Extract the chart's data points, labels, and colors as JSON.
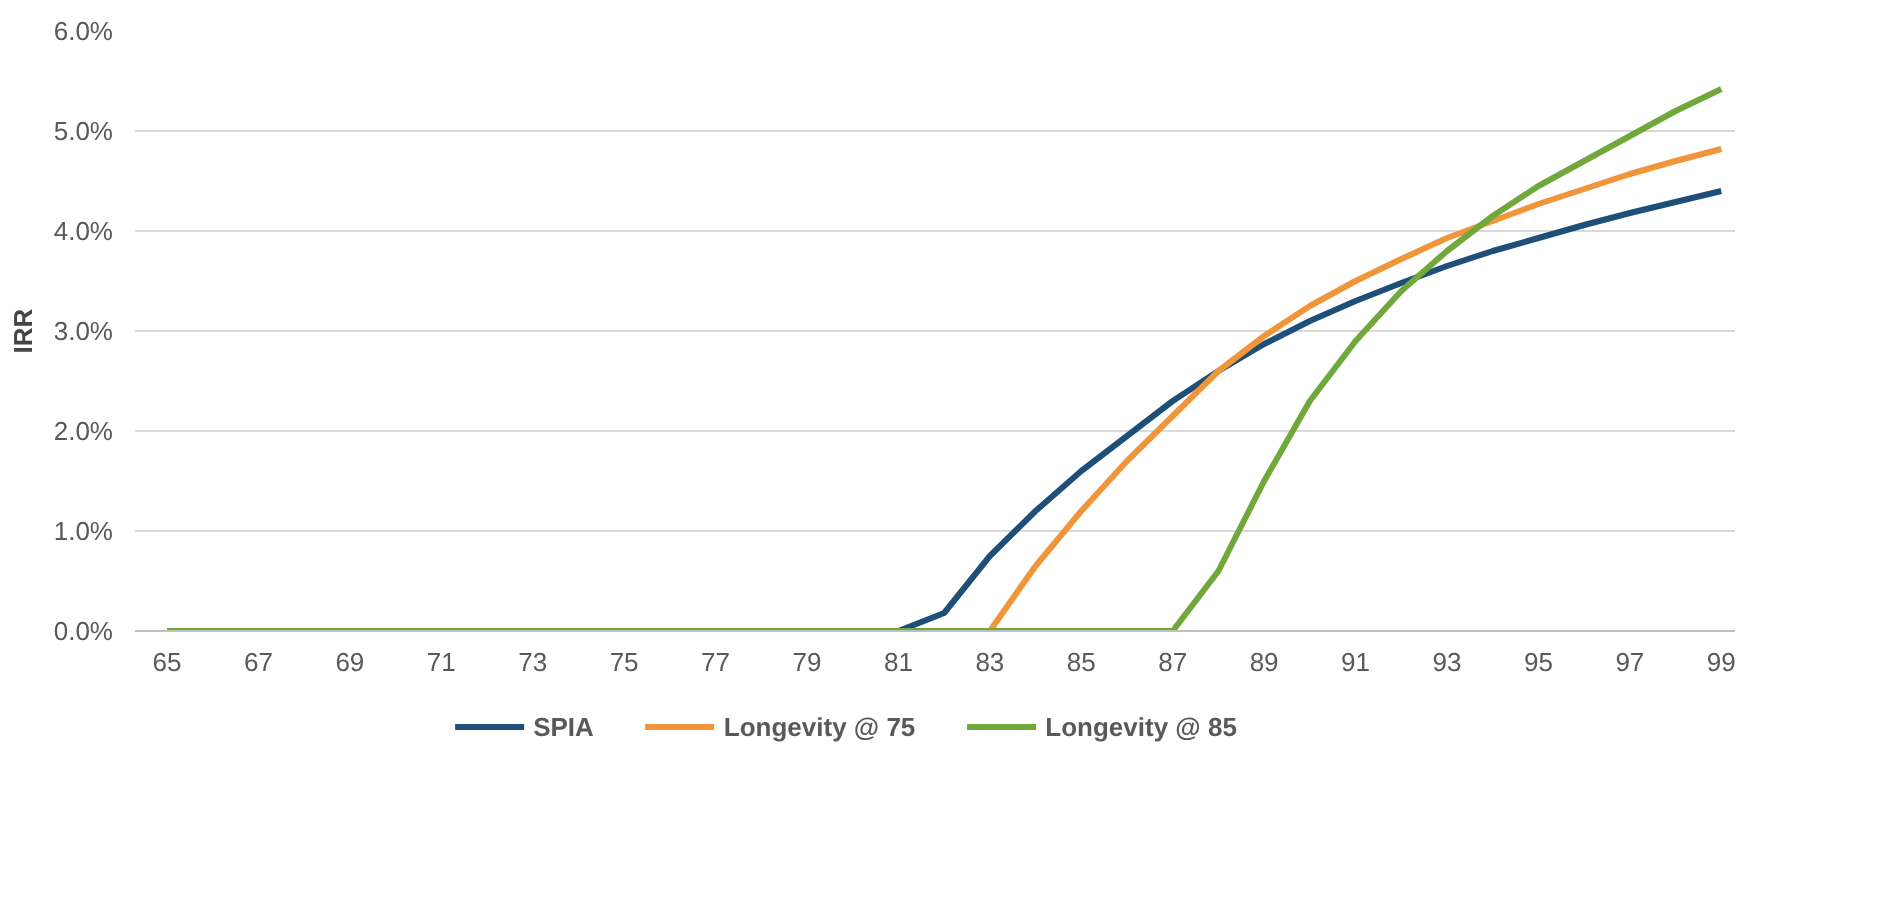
{
  "chart_data": {
    "type": "line",
    "ylabel": "IRR",
    "x": [
      65,
      66,
      67,
      68,
      69,
      70,
      71,
      72,
      73,
      74,
      75,
      76,
      77,
      78,
      79,
      80,
      81,
      82,
      83,
      84,
      85,
      86,
      87,
      88,
      89,
      90,
      91,
      92,
      93,
      94,
      95,
      96,
      97,
      98,
      99
    ],
    "series": [
      {
        "name": "SPIA",
        "color": "#1f4e79",
        "values": [
          null,
          null,
          null,
          null,
          null,
          null,
          null,
          null,
          null,
          null,
          null,
          null,
          null,
          null,
          null,
          0,
          0,
          0.18,
          0.75,
          1.2,
          1.6,
          1.95,
          2.3,
          2.6,
          2.87,
          3.1,
          3.3,
          3.48,
          3.65,
          3.8,
          3.93,
          4.06,
          4.18,
          4.29,
          4.4
        ]
      },
      {
        "name": "Longevity @ 75",
        "color": "#f0953a",
        "values": [
          null,
          null,
          null,
          null,
          null,
          null,
          null,
          null,
          null,
          null,
          null,
          null,
          null,
          null,
          null,
          null,
          null,
          null,
          0,
          0.65,
          1.2,
          1.7,
          2.15,
          2.6,
          2.95,
          3.25,
          3.5,
          3.72,
          3.93,
          4.1,
          4.27,
          4.42,
          4.57,
          4.7,
          4.82
        ]
      },
      {
        "name": "Longevity @ 85",
        "color": "#70a83b",
        "values": [
          0,
          0,
          0,
          0,
          0,
          0,
          0,
          0,
          0,
          0,
          0,
          0,
          0,
          0,
          0,
          0,
          0,
          0,
          0,
          0,
          0,
          0,
          0,
          0.6,
          1.5,
          2.3,
          2.9,
          3.4,
          3.8,
          4.15,
          4.45,
          4.7,
          4.95,
          5.2,
          5.42
        ]
      }
    ],
    "xlim": [
      64.3,
      99.3
    ],
    "xticks": [
      65,
      67,
      69,
      71,
      73,
      75,
      77,
      79,
      81,
      83,
      85,
      87,
      89,
      91,
      93,
      95,
      97,
      99
    ],
    "ylim": [
      0,
      6
    ],
    "yticks": [
      {
        "value": 0,
        "label": "0.0%"
      },
      {
        "value": 1,
        "label": "1.0%"
      },
      {
        "value": 2,
        "label": "2.0%"
      },
      {
        "value": 3,
        "label": "3.0%"
      },
      {
        "value": 4,
        "label": "4.0%"
      },
      {
        "value": 5,
        "label": "5.0%"
      },
      {
        "value": 6,
        "label": "6.0%"
      }
    ],
    "grid": "y",
    "legend": "bottom",
    "marker": "none",
    "line_style": "solid"
  }
}
